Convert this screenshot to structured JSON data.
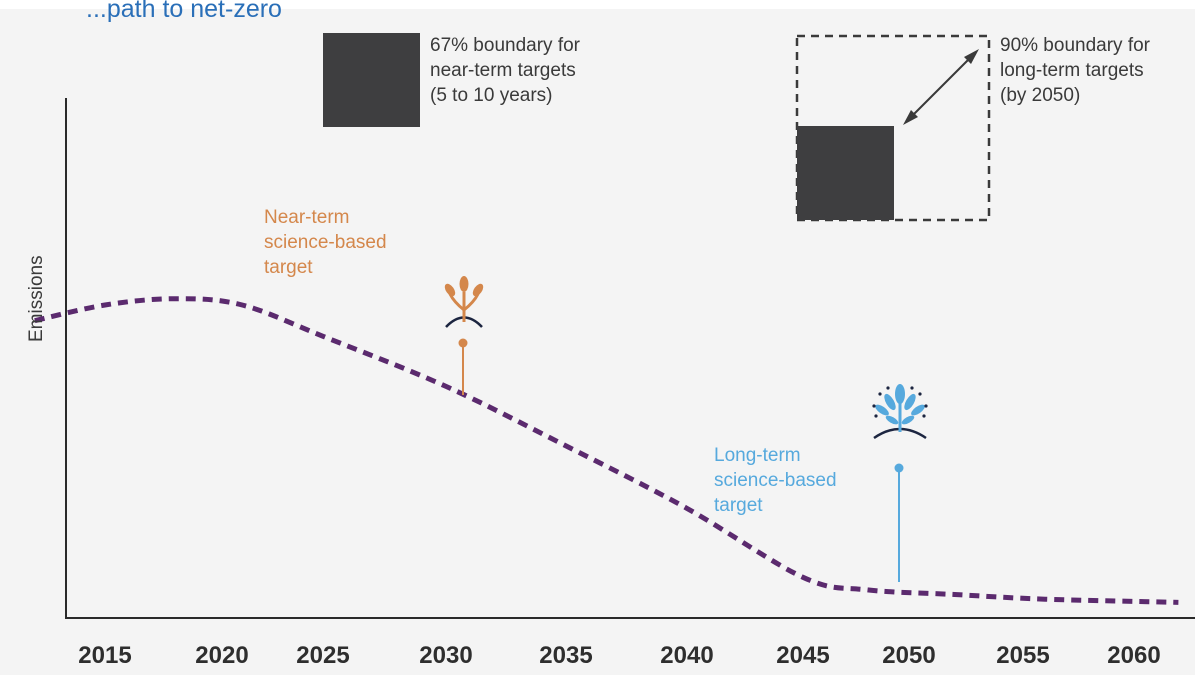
{
  "header": {
    "text": "...path to net-zero"
  },
  "chart_data": {
    "type": "line",
    "xlabel": "",
    "ylabel": "Emissions",
    "x_ticks": [
      "2015",
      "2020",
      "2025",
      "2030",
      "2035",
      "2040",
      "2045",
      "2050",
      "2055",
      "2060"
    ],
    "y_ticks": [],
    "series": [
      {
        "style": "dashed",
        "color": "#5b2a6e",
        "points": [
          {
            "x": 2012,
            "y": 0.95
          },
          {
            "x": 2015,
            "y": 1.0
          },
          {
            "x": 2018,
            "y": 1.02
          },
          {
            "x": 2021,
            "y": 1.0
          },
          {
            "x": 2025,
            "y": 0.9
          },
          {
            "x": 2030,
            "y": 0.74
          },
          {
            "x": 2035,
            "y": 0.55
          },
          {
            "x": 2040,
            "y": 0.35
          },
          {
            "x": 2045,
            "y": 0.13
          },
          {
            "x": 2048,
            "y": 0.09
          },
          {
            "x": 2052,
            "y": 0.075
          },
          {
            "x": 2056,
            "y": 0.06
          },
          {
            "x": 2062,
            "y": 0.05
          }
        ]
      }
    ]
  },
  "annotations": {
    "near_term": {
      "label": "Near-term science-based target",
      "lines": [
        "Near-term",
        "science-based",
        "target"
      ],
      "color": "#d4874b",
      "year": 2030.5,
      "icon": "sprout-icon"
    },
    "long_term": {
      "label": "Long-term science-based target",
      "lines": [
        "Long-term",
        "science-based",
        "target"
      ],
      "color": "#56a9dd",
      "year": 2050,
      "icon": "tree-icon"
    },
    "boundary_near": {
      "lines": [
        "67% boundary for",
        "near-term targets",
        "(5 to 10 years)"
      ],
      "fill": "#3e3e40"
    },
    "boundary_long": {
      "lines": [
        "90% boundary for",
        "long-term targets",
        "(by 2050)"
      ],
      "fill": "#3e3e40"
    }
  }
}
